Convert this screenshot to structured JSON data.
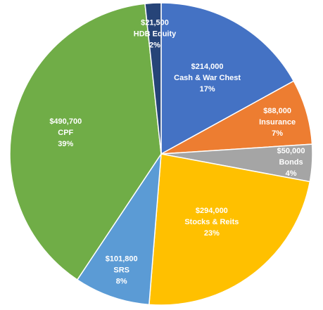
{
  "chart_data": {
    "type": "pie",
    "title": "",
    "legend": "none",
    "start_angle_deg": 0,
    "direction": "clockwise",
    "slices": [
      {
        "name": "Cash & War Chest",
        "value": 214000,
        "value_label": "$214,000",
        "pct_label": "17%",
        "color": "#4472C4"
      },
      {
        "name": "Insurance",
        "value": 88000,
        "value_label": "$88,000",
        "pct_label": "7%",
        "color": "#ED7D31"
      },
      {
        "name": "Bonds",
        "value": 50000,
        "value_label": "$50,000",
        "pct_label": "4%",
        "color": "#A5A5A5"
      },
      {
        "name": "Stocks & Reits",
        "value": 294000,
        "value_label": "$294,000",
        "pct_label": "23%",
        "color": "#FFC000"
      },
      {
        "name": "SRS",
        "value": 101800,
        "value_label": "$101,800",
        "pct_label": "8%",
        "color": "#5B9BD5"
      },
      {
        "name": "CPF",
        "value": 490700,
        "value_label": "$490,700",
        "pct_label": "39%",
        "color": "#70AD47"
      },
      {
        "name": "HDB Equity",
        "value": 21500,
        "value_label": "$21,500",
        "pct_label": "2%",
        "color": "#264478"
      }
    ]
  }
}
